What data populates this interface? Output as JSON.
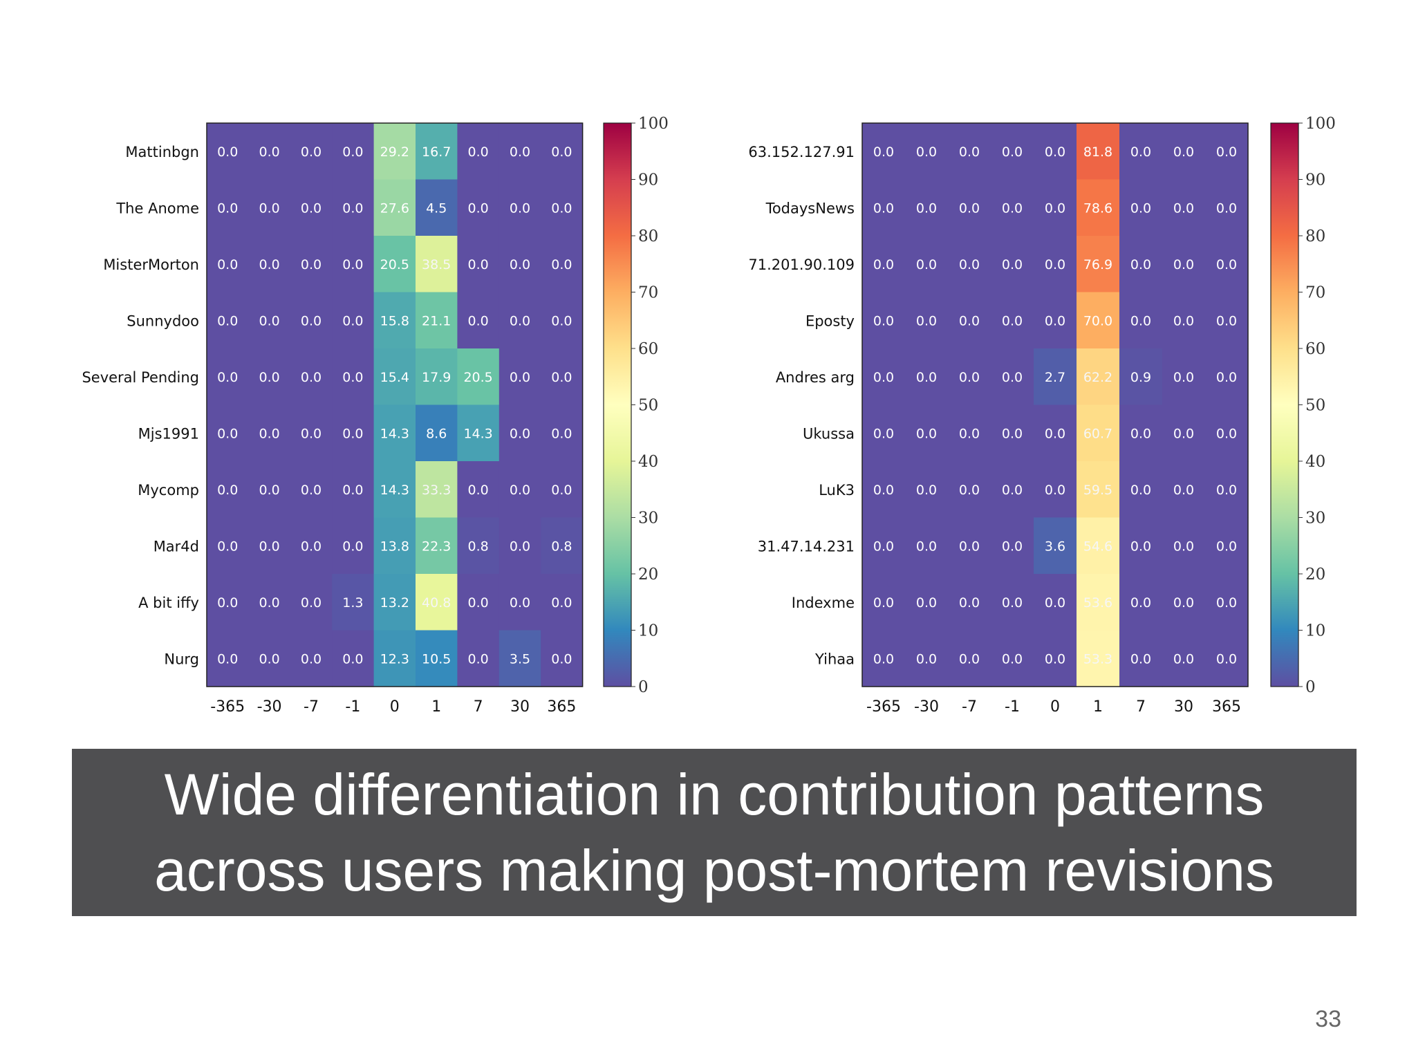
{
  "chart_data": [
    {
      "type": "heatmap",
      "x_ticks": [
        "-365",
        "-30",
        "-7",
        "-1",
        "0",
        "1",
        "7",
        "30",
        "365"
      ],
      "rows": [
        "Mattinbgn",
        "The Anome",
        "MisterMorton",
        "Sunnydoo",
        "Several Pending",
        "Mjs1991",
        "Mycomp",
        "Mar4d",
        "A bit iffy",
        "Nurg"
      ],
      "values": [
        [
          0.0,
          0.0,
          0.0,
          0.0,
          29.2,
          16.7,
          0.0,
          0.0,
          0.0
        ],
        [
          0.0,
          0.0,
          0.0,
          0.0,
          27.6,
          4.5,
          0.0,
          0.0,
          0.0
        ],
        [
          0.0,
          0.0,
          0.0,
          0.0,
          20.5,
          38.5,
          0.0,
          0.0,
          0.0
        ],
        [
          0.0,
          0.0,
          0.0,
          0.0,
          15.8,
          21.1,
          0.0,
          0.0,
          0.0
        ],
        [
          0.0,
          0.0,
          0.0,
          0.0,
          15.4,
          17.9,
          20.5,
          0.0,
          0.0
        ],
        [
          0.0,
          0.0,
          0.0,
          0.0,
          14.3,
          8.6,
          14.3,
          0.0,
          0.0
        ],
        [
          0.0,
          0.0,
          0.0,
          0.0,
          14.3,
          33.3,
          0.0,
          0.0,
          0.0
        ],
        [
          0.0,
          0.0,
          0.0,
          0.0,
          13.8,
          22.3,
          0.8,
          0.0,
          0.8
        ],
        [
          0.0,
          0.0,
          0.0,
          1.3,
          13.2,
          40.8,
          0.0,
          0.0,
          0.0
        ],
        [
          0.0,
          0.0,
          0.0,
          0.0,
          12.3,
          10.5,
          0.0,
          3.5,
          0.0
        ]
      ],
      "colorbar_ticks": [
        "0",
        "10",
        "20",
        "30",
        "40",
        "50",
        "60",
        "70",
        "80",
        "90",
        "100"
      ],
      "vmin": 0,
      "vmax": 100,
      "colormap": "spectral_r"
    },
    {
      "type": "heatmap",
      "x_ticks": [
        "-365",
        "-30",
        "-7",
        "-1",
        "0",
        "1",
        "7",
        "30",
        "365"
      ],
      "rows": [
        "63.152.127.91",
        "TodaysNews",
        "71.201.90.109",
        "Eposty",
        "Andres arg",
        "Ukussa",
        "LuK3",
        "31.47.14.231",
        "Indexme",
        "Yihaa"
      ],
      "values": [
        [
          0.0,
          0.0,
          0.0,
          0.0,
          0.0,
          81.8,
          0.0,
          0.0,
          0.0
        ],
        [
          0.0,
          0.0,
          0.0,
          0.0,
          0.0,
          78.6,
          0.0,
          0.0,
          0.0
        ],
        [
          0.0,
          0.0,
          0.0,
          0.0,
          0.0,
          76.9,
          0.0,
          0.0,
          0.0
        ],
        [
          0.0,
          0.0,
          0.0,
          0.0,
          0.0,
          70.0,
          0.0,
          0.0,
          0.0
        ],
        [
          0.0,
          0.0,
          0.0,
          0.0,
          2.7,
          62.2,
          0.9,
          0.0,
          0.0
        ],
        [
          0.0,
          0.0,
          0.0,
          0.0,
          0.0,
          60.7,
          0.0,
          0.0,
          0.0
        ],
        [
          0.0,
          0.0,
          0.0,
          0.0,
          0.0,
          59.5,
          0.0,
          0.0,
          0.0
        ],
        [
          0.0,
          0.0,
          0.0,
          0.0,
          3.6,
          54.6,
          0.0,
          0.0,
          0.0
        ],
        [
          0.0,
          0.0,
          0.0,
          0.0,
          0.0,
          53.6,
          0.0,
          0.0,
          0.0
        ],
        [
          0.0,
          0.0,
          0.0,
          0.0,
          0.0,
          53.3,
          0.0,
          0.0,
          0.0
        ]
      ],
      "colorbar_ticks": [
        "0",
        "10",
        "20",
        "30",
        "40",
        "50",
        "60",
        "70",
        "80",
        "90",
        "100"
      ],
      "vmin": 0,
      "vmax": 100,
      "colormap": "spectral_r"
    }
  ],
  "caption": {
    "line1": "Wide differentiation in contribution patterns",
    "line2": "across users making post-mortem revisions"
  },
  "page_number": "33",
  "colors": {
    "caption_background": "#4f4f51",
    "caption_text": "#ffffff",
    "page_number": "#666666"
  }
}
